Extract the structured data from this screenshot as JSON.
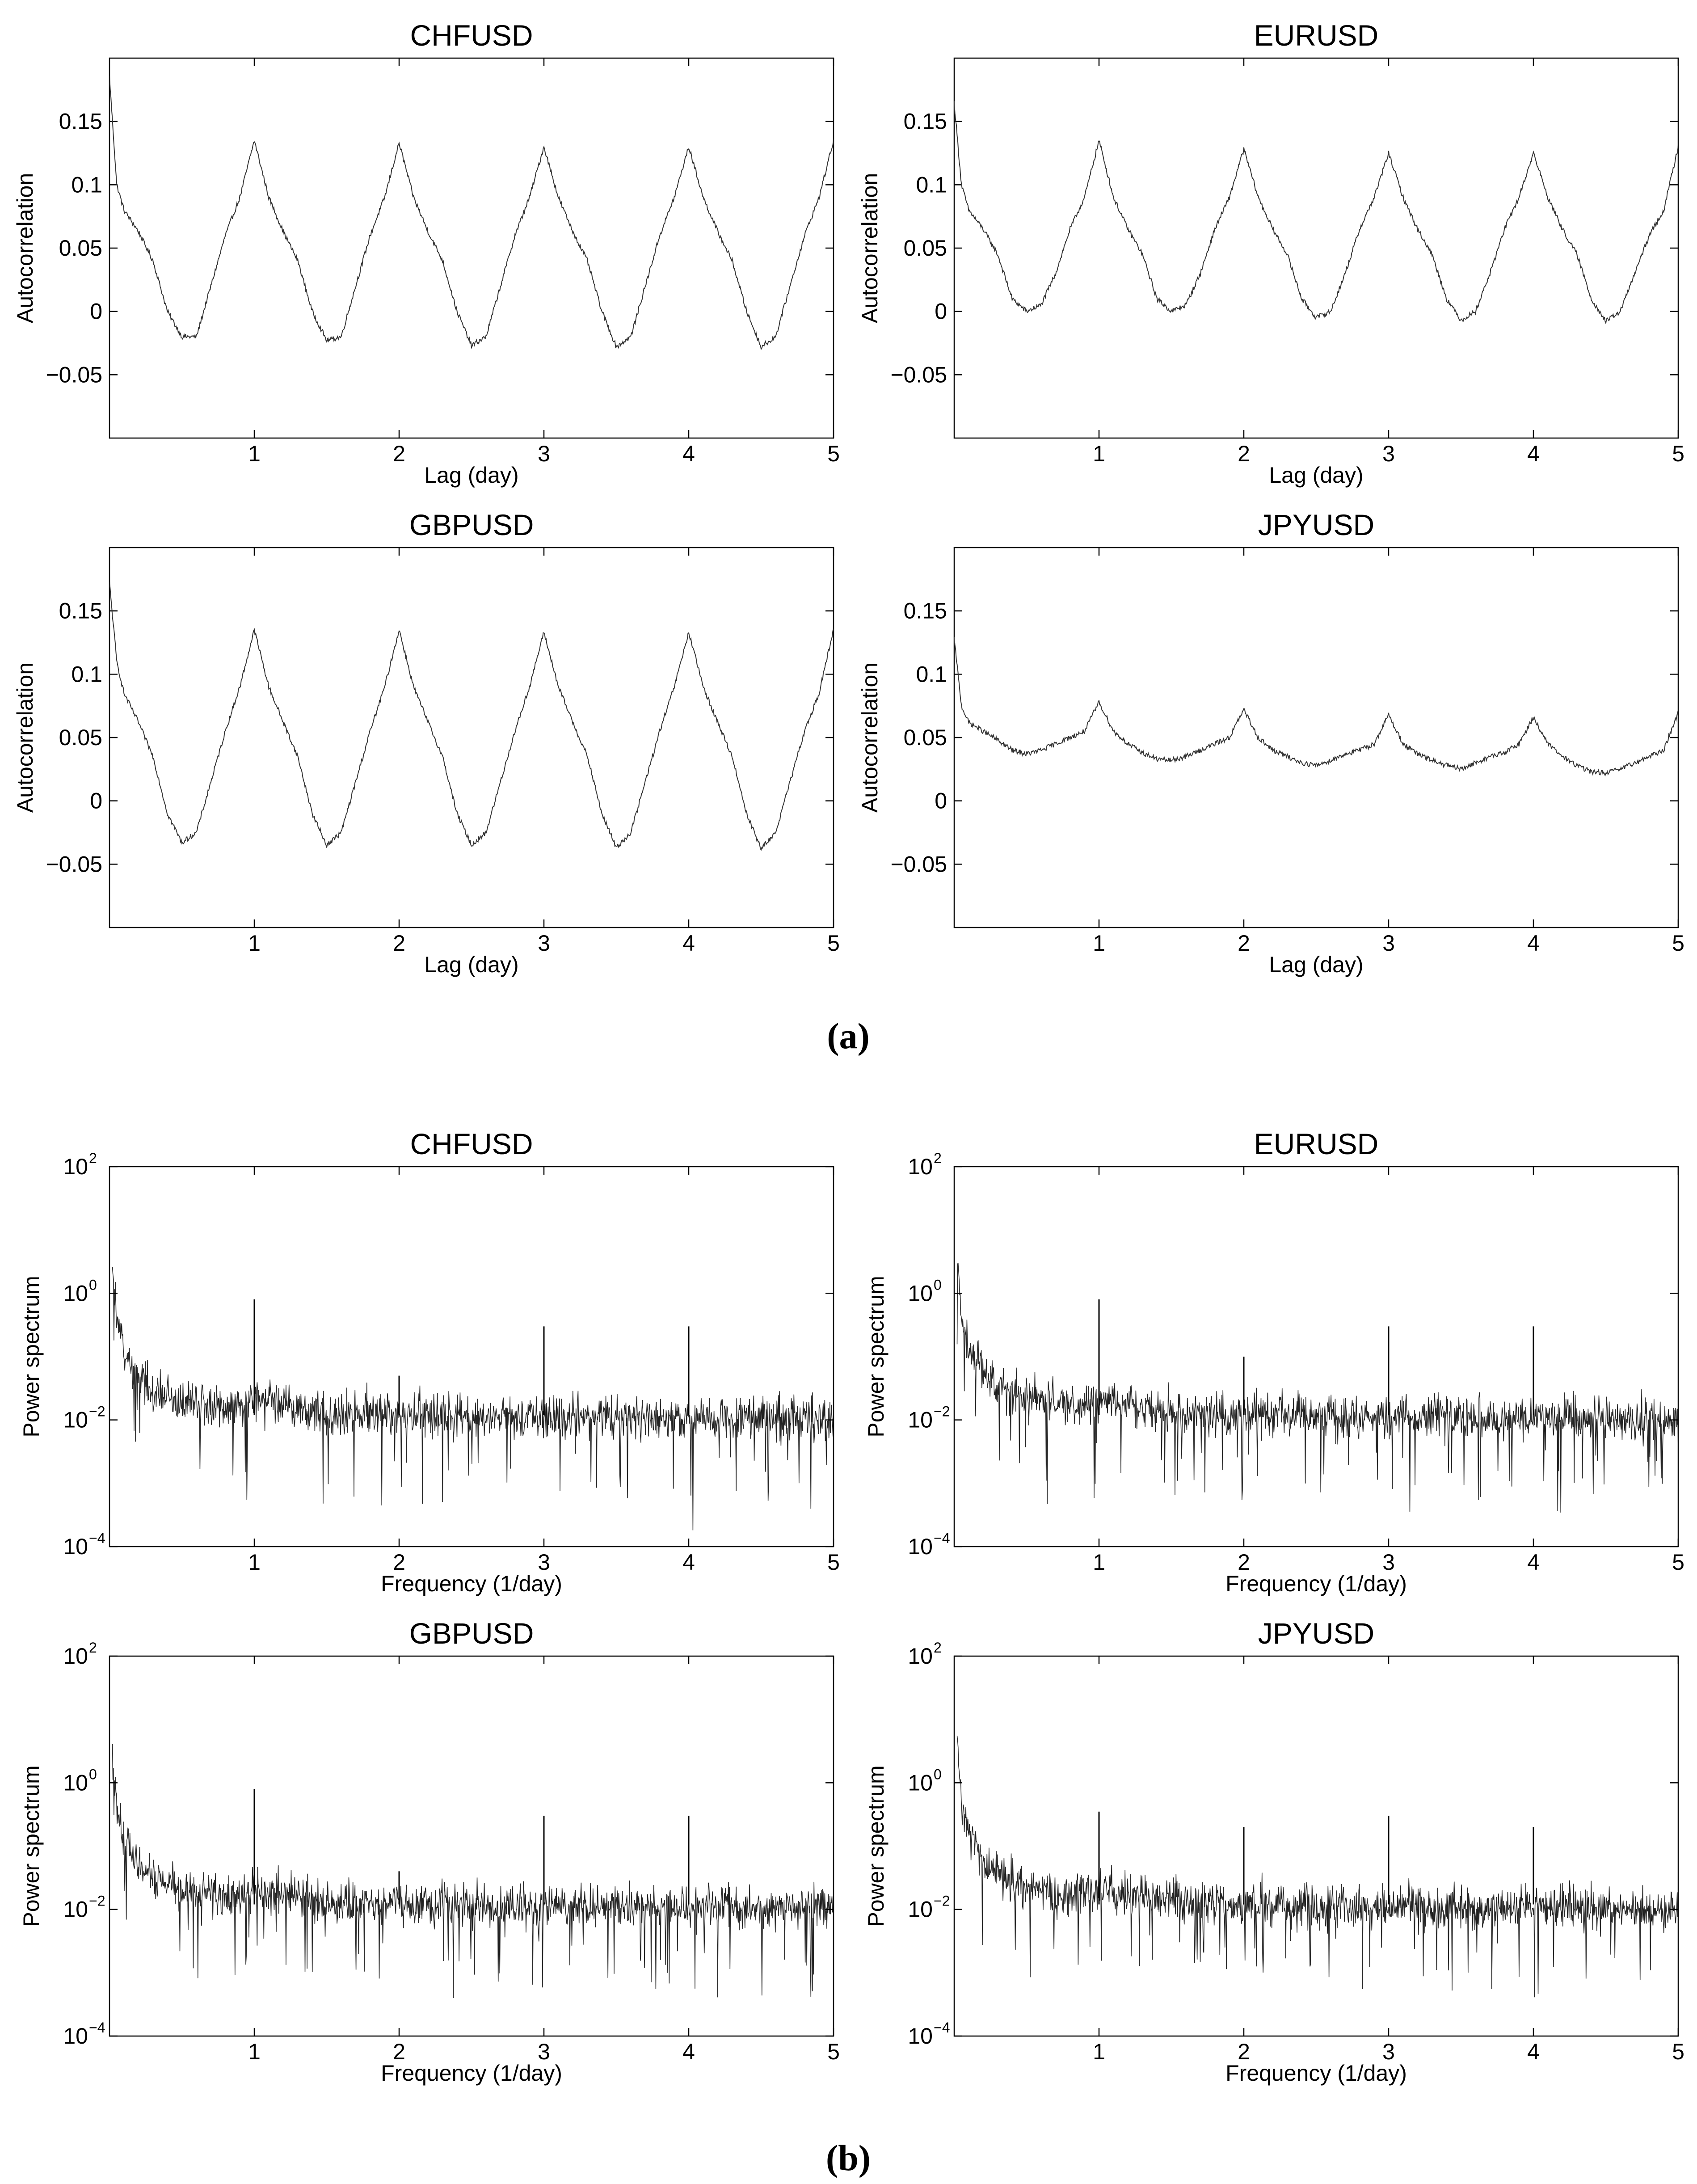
{
  "figure": {
    "label_a": "(a)",
    "label_b": "(b)"
  },
  "chart_data": [
    {
      "type": "line",
      "group": "a",
      "title": "CHFUSD",
      "xlabel": "Lag (day)",
      "ylabel": "Autocorrelation",
      "xlim": [
        0,
        5
      ],
      "ylim": [
        -0.1,
        0.2
      ],
      "xticks": [
        1,
        2,
        3,
        4,
        5
      ],
      "xtick_labels": [
        "1",
        "2",
        "3",
        "4",
        "5"
      ],
      "yticks": [
        -0.05,
        0,
        0.05,
        0.1,
        0.15
      ],
      "ytick_labels": [
        "−0.05",
        "0",
        "0.05",
        "0.1",
        "0.15"
      ],
      "line_color": "#333333",
      "series": [
        {
          "x": [
            0,
            0.05,
            0.1,
            0.2,
            0.3,
            0.4,
            0.5,
            0.6,
            0.7,
            0.8,
            0.9,
            1.0,
            1.1,
            1.2,
            1.3,
            1.4,
            1.5,
            1.6,
            1.7,
            1.8,
            1.9,
            2.0,
            2.1,
            2.2,
            2.3,
            2.4,
            2.5,
            2.6,
            2.7,
            2.8,
            2.9,
            3.0,
            3.1,
            3.2,
            3.3,
            3.4,
            3.5,
            3.6,
            3.7,
            3.8,
            3.9,
            4.0,
            4.1,
            4.2,
            4.3,
            4.4,
            4.5,
            4.6,
            4.7,
            4.8,
            4.9,
            5.0
          ],
          "y": [
            0.185,
            0.1,
            0.08,
            0.063,
            0.04,
            0.0,
            -0.02,
            -0.02,
            0.02,
            0.06,
            0.09,
            0.135,
            0.09,
            0.063,
            0.04,
            0.0,
            -0.023,
            -0.02,
            0.02,
            0.06,
            0.09,
            0.133,
            0.09,
            0.063,
            0.04,
            0.0,
            -0.027,
            -0.02,
            0.02,
            0.06,
            0.09,
            0.13,
            0.09,
            0.063,
            0.04,
            0.0,
            -0.028,
            -0.02,
            0.02,
            0.06,
            0.09,
            0.13,
            0.09,
            0.063,
            0.04,
            0.0,
            -0.028,
            -0.02,
            0.02,
            0.06,
            0.09,
            0.135
          ]
        }
      ]
    },
    {
      "type": "line",
      "group": "a",
      "title": "EURUSD",
      "xlabel": "Lag (day)",
      "ylabel": "Autocorrelation",
      "xlim": [
        0,
        5
      ],
      "ylim": [
        -0.1,
        0.2
      ],
      "xticks": [
        1,
        2,
        3,
        4,
        5
      ],
      "xtick_labels": [
        "1",
        "2",
        "3",
        "4",
        "5"
      ],
      "yticks": [
        -0.05,
        0,
        0.05,
        0.1,
        0.15
      ],
      "ytick_labels": [
        "−0.05",
        "0",
        "0.05",
        "0.1",
        "0.15"
      ],
      "line_color": "#333333",
      "series": [
        {
          "x": [
            0,
            0.05,
            0.1,
            0.2,
            0.3,
            0.4,
            0.5,
            0.6,
            0.7,
            0.8,
            0.9,
            1.0,
            1.1,
            1.2,
            1.3,
            1.4,
            1.5,
            1.6,
            1.7,
            1.8,
            1.9,
            2.0,
            2.1,
            2.2,
            2.3,
            2.4,
            2.5,
            2.6,
            2.7,
            2.8,
            2.9,
            3.0,
            3.1,
            3.2,
            3.3,
            3.4,
            3.5,
            3.6,
            3.7,
            3.8,
            3.9,
            4.0,
            4.1,
            4.2,
            4.3,
            4.4,
            4.5,
            4.6,
            4.7,
            4.8,
            4.9,
            5.0
          ],
          "y": [
            0.165,
            0.1,
            0.08,
            0.065,
            0.045,
            0.01,
            0.0,
            0.005,
            0.03,
            0.065,
            0.09,
            0.135,
            0.09,
            0.065,
            0.045,
            0.01,
            0.0,
            0.005,
            0.03,
            0.065,
            0.09,
            0.128,
            0.09,
            0.065,
            0.045,
            0.01,
            -0.005,
            0.0,
            0.03,
            0.065,
            0.09,
            0.125,
            0.09,
            0.065,
            0.045,
            0.01,
            -0.007,
            0.0,
            0.03,
            0.065,
            0.09,
            0.125,
            0.09,
            0.065,
            0.045,
            0.01,
            -0.008,
            0.0,
            0.03,
            0.06,
            0.08,
            0.13
          ]
        }
      ]
    },
    {
      "type": "line",
      "group": "a",
      "title": "GBPUSD",
      "xlabel": "Lag (day)",
      "ylabel": "Autocorrelation",
      "xlim": [
        0,
        5
      ],
      "ylim": [
        -0.1,
        0.2
      ],
      "xticks": [
        1,
        2,
        3,
        4,
        5
      ],
      "xtick_labels": [
        "1",
        "2",
        "3",
        "4",
        "5"
      ],
      "yticks": [
        -0.05,
        0,
        0.05,
        0.1,
        0.15
      ],
      "ytick_labels": [
        "−0.05",
        "0",
        "0.05",
        "0.1",
        "0.15"
      ],
      "line_color": "#333333",
      "series": [
        {
          "x": [
            0,
            0.05,
            0.1,
            0.2,
            0.3,
            0.4,
            0.5,
            0.6,
            0.7,
            0.8,
            0.9,
            1.0,
            1.1,
            1.2,
            1.3,
            1.4,
            1.5,
            1.6,
            1.7,
            1.8,
            1.9,
            2.0,
            2.1,
            2.2,
            2.3,
            2.4,
            2.5,
            2.6,
            2.7,
            2.8,
            2.9,
            3.0,
            3.1,
            3.2,
            3.3,
            3.4,
            3.5,
            3.6,
            3.7,
            3.8,
            3.9,
            4.0,
            4.1,
            4.2,
            4.3,
            4.4,
            4.5,
            4.6,
            4.7,
            4.8,
            4.9,
            5.0
          ],
          "y": [
            0.172,
            0.11,
            0.085,
            0.062,
            0.035,
            -0.01,
            -0.033,
            -0.025,
            0.015,
            0.055,
            0.09,
            0.135,
            0.09,
            0.062,
            0.035,
            -0.01,
            -0.035,
            -0.025,
            0.015,
            0.055,
            0.09,
            0.135,
            0.09,
            0.062,
            0.035,
            -0.01,
            -0.035,
            -0.025,
            0.015,
            0.055,
            0.09,
            0.133,
            0.09,
            0.062,
            0.035,
            -0.01,
            -0.037,
            -0.025,
            0.015,
            0.055,
            0.09,
            0.133,
            0.09,
            0.062,
            0.035,
            -0.01,
            -0.038,
            -0.025,
            0.015,
            0.055,
            0.085,
            0.135
          ]
        }
      ]
    },
    {
      "type": "line",
      "group": "a",
      "title": "JPYUSD",
      "xlabel": "Lag (day)",
      "ylabel": "Autocorrelation",
      "xlim": [
        0,
        5
      ],
      "ylim": [
        -0.1,
        0.2
      ],
      "xticks": [
        1,
        2,
        3,
        4,
        5
      ],
      "xtick_labels": [
        "1",
        "2",
        "3",
        "4",
        "5"
      ],
      "yticks": [
        -0.05,
        0,
        0.05,
        0.1,
        0.15
      ],
      "ytick_labels": [
        "−0.05",
        "0",
        "0.05",
        "0.1",
        "0.15"
      ],
      "line_color": "#333333",
      "series": [
        {
          "x": [
            0,
            0.05,
            0.1,
            0.2,
            0.3,
            0.4,
            0.5,
            0.6,
            0.7,
            0.8,
            0.9,
            1.0,
            1.1,
            1.2,
            1.3,
            1.4,
            1.5,
            1.6,
            1.7,
            1.8,
            1.9,
            2.0,
            2.1,
            2.2,
            2.3,
            2.4,
            2.5,
            2.6,
            2.7,
            2.8,
            2.9,
            3.0,
            3.1,
            3.2,
            3.3,
            3.4,
            3.5,
            3.6,
            3.7,
            3.8,
            3.9,
            4.0,
            4.1,
            4.2,
            4.3,
            4.4,
            4.5,
            4.6,
            4.7,
            4.8,
            4.9,
            5.0
          ],
          "y": [
            0.128,
            0.075,
            0.062,
            0.055,
            0.048,
            0.04,
            0.037,
            0.04,
            0.045,
            0.05,
            0.055,
            0.078,
            0.055,
            0.045,
            0.038,
            0.033,
            0.032,
            0.035,
            0.04,
            0.045,
            0.05,
            0.072,
            0.05,
            0.04,
            0.035,
            0.03,
            0.028,
            0.032,
            0.037,
            0.04,
            0.045,
            0.068,
            0.045,
            0.037,
            0.032,
            0.028,
            0.025,
            0.03,
            0.035,
            0.038,
            0.045,
            0.066,
            0.045,
            0.035,
            0.028,
            0.023,
            0.022,
            0.025,
            0.03,
            0.035,
            0.04,
            0.07
          ]
        }
      ]
    },
    {
      "type": "line",
      "group": "b",
      "title": "CHFUSD",
      "xlabel": "Frequency (1/day)",
      "ylabel": "Power spectrum",
      "xlim": [
        0,
        5
      ],
      "ylim": [
        0.0001,
        100
      ],
      "yscale": "log",
      "xticks": [
        1,
        2,
        3,
        4,
        5
      ],
      "xtick_labels": [
        "1",
        "2",
        "3",
        "4",
        "5"
      ],
      "yticks": [
        0.0001,
        0.01,
        1,
        100
      ],
      "ytick_labels": [
        "10",
        "10",
        "10",
        "10"
      ],
      "ytick_exponents": [
        "−4",
        "−2",
        "0",
        "2"
      ],
      "line_color": "#000000",
      "series": [
        {
          "x": [
            0.02,
            0.05,
            0.1,
            0.2,
            0.3,
            0.5,
            0.8,
            1.0,
            1.5,
            2.0,
            3.0,
            4.0,
            5.0
          ],
          "y": [
            2.0,
            0.3,
            0.12,
            0.05,
            0.03,
            0.02,
            0.015,
            0.02,
            0.012,
            0.012,
            0.011,
            0.011,
            0.01
          ]
        }
      ],
      "peaks": [
        {
          "x": 1,
          "y": 0.8
        },
        {
          "x": 2,
          "y": 0.05
        },
        {
          "x": 3,
          "y": 0.3
        },
        {
          "x": 4,
          "y": 0.3
        }
      ]
    },
    {
      "type": "line",
      "group": "b",
      "title": "EURUSD",
      "xlabel": "Frequency (1/day)",
      "ylabel": "Power spectrum",
      "xlim": [
        0,
        5
      ],
      "ylim": [
        0.0001,
        100
      ],
      "yscale": "log",
      "xticks": [
        1,
        2,
        3,
        4,
        5
      ],
      "xtick_labels": [
        "1",
        "2",
        "3",
        "4",
        "5"
      ],
      "yticks": [
        0.0001,
        0.01,
        1,
        100
      ],
      "ytick_labels": [
        "10",
        "10",
        "10",
        "10"
      ],
      "ytick_exponents": [
        "−4",
        "−2",
        "0",
        "2"
      ],
      "line_color": "#000000",
      "series": [
        {
          "x": [
            0.02,
            0.05,
            0.1,
            0.2,
            0.3,
            0.5,
            0.8,
            1.0,
            1.5,
            2.0,
            3.0,
            4.0,
            5.0
          ],
          "y": [
            3.0,
            0.4,
            0.15,
            0.06,
            0.035,
            0.022,
            0.016,
            0.02,
            0.013,
            0.012,
            0.011,
            0.011,
            0.01
          ]
        }
      ],
      "peaks": [
        {
          "x": 1,
          "y": 0.8
        },
        {
          "x": 2,
          "y": 0.1
        },
        {
          "x": 3,
          "y": 0.3
        },
        {
          "x": 4,
          "y": 0.3
        }
      ]
    },
    {
      "type": "line",
      "group": "b",
      "title": "GBPUSD",
      "xlabel": "Frequency (1/day)",
      "ylabel": "Power spectrum",
      "xlim": [
        0,
        5
      ],
      "ylim": [
        0.0001,
        100
      ],
      "yscale": "log",
      "xticks": [
        1,
        2,
        3,
        4,
        5
      ],
      "xtick_labels": [
        "1",
        "2",
        "3",
        "4",
        "5"
      ],
      "yticks": [
        0.0001,
        0.01,
        1,
        100
      ],
      "ytick_labels": [
        "10",
        "10",
        "10",
        "10"
      ],
      "ytick_exponents": [
        "−4",
        "−2",
        "0",
        "2"
      ],
      "line_color": "#000000",
      "series": [
        {
          "x": [
            0.02,
            0.05,
            0.1,
            0.2,
            0.3,
            0.5,
            0.8,
            1.0,
            1.5,
            2.0,
            3.0,
            4.0,
            5.0
          ],
          "y": [
            2.0,
            0.3,
            0.12,
            0.05,
            0.03,
            0.02,
            0.015,
            0.02,
            0.012,
            0.012,
            0.011,
            0.011,
            0.01
          ]
        }
      ],
      "peaks": [
        {
          "x": 1,
          "y": 0.8
        },
        {
          "x": 2,
          "y": 0.04
        },
        {
          "x": 3,
          "y": 0.3
        },
        {
          "x": 4,
          "y": 0.3
        }
      ]
    },
    {
      "type": "line",
      "group": "b",
      "title": "JPYUSD",
      "xlabel": "Frequency (1/day)",
      "ylabel": "Power spectrum",
      "xlim": [
        0,
        5
      ],
      "ylim": [
        0.0001,
        100
      ],
      "yscale": "log",
      "xticks": [
        1,
        2,
        3,
        4,
        5
      ],
      "xtick_labels": [
        "1",
        "2",
        "3",
        "4",
        "5"
      ],
      "yticks": [
        0.0001,
        0.01,
        1,
        100
      ],
      "ytick_labels": [
        "10",
        "10",
        "10",
        "10"
      ],
      "ytick_exponents": [
        "−4",
        "−2",
        "0",
        "2"
      ],
      "line_color": "#000000",
      "series": [
        {
          "x": [
            0.02,
            0.05,
            0.1,
            0.2,
            0.3,
            0.5,
            0.8,
            1.0,
            1.5,
            2.0,
            3.0,
            4.0,
            5.0
          ],
          "y": [
            3.0,
            0.4,
            0.15,
            0.06,
            0.035,
            0.022,
            0.016,
            0.02,
            0.013,
            0.012,
            0.011,
            0.011,
            0.01
          ]
        }
      ],
      "peaks": [
        {
          "x": 1,
          "y": 0.35
        },
        {
          "x": 2,
          "y": 0.2
        },
        {
          "x": 3,
          "y": 0.3
        },
        {
          "x": 4,
          "y": 0.2
        }
      ]
    }
  ]
}
